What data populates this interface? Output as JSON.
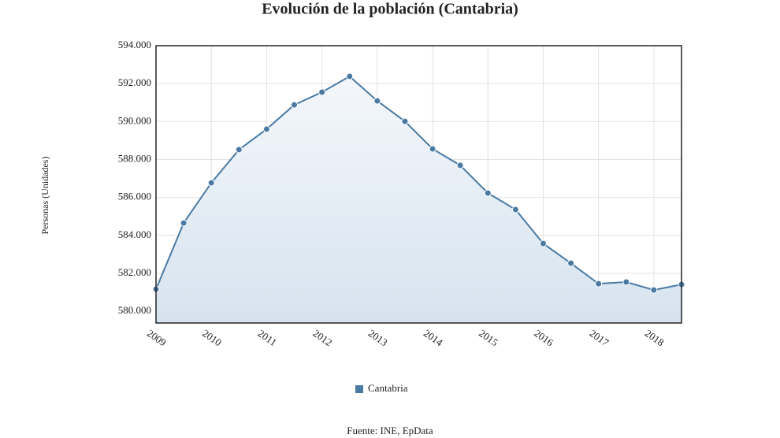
{
  "chart_data": {
    "type": "line",
    "title": "Evolución de la población (Cantabria)",
    "y_label": "Personas (Unidades)",
    "source": "Fuente: INE, EpData",
    "x": [
      2009,
      2009.5,
      2010,
      2010.5,
      2011,
      2011.5,
      2012,
      2012.5,
      2013,
      2013.5,
      2014,
      2014.5,
      2015,
      2015.5,
      2016,
      2016.5,
      2017,
      2017.5,
      2018,
      2018.5
    ],
    "series": [
      {
        "name": "Cantabria",
        "color": "#4a7aa3",
        "values": [
          581160,
          584650,
          586770,
          588520,
          589600,
          590880,
          591550,
          592380,
          591090,
          590010,
          588560,
          587690,
          586230,
          585360,
          583570,
          582530,
          581450,
          581540,
          581120,
          581410
        ]
      }
    ],
    "xlim": [
      2009,
      2018.5
    ],
    "xticks": [
      2009,
      2010,
      2011,
      2012,
      2013,
      2014,
      2015,
      2016,
      2017,
      2018
    ],
    "ylim": [
      579380,
      594000
    ],
    "yticks": [
      {
        "value": 580000,
        "label": "580.000"
      },
      {
        "value": 582000,
        "label": "582.000"
      },
      {
        "value": 584000,
        "label": "584.000"
      },
      {
        "value": 586000,
        "label": "586.000"
      },
      {
        "value": 588000,
        "label": "588.000"
      },
      {
        "value": 590000,
        "label": "590.000"
      },
      {
        "value": 592000,
        "label": "592.000"
      },
      {
        "value": 594000,
        "label": "594.000"
      }
    ],
    "grid": true,
    "legend": "bottom"
  }
}
